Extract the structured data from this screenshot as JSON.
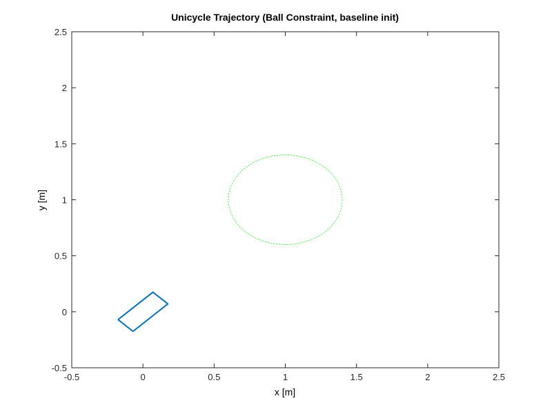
{
  "chart_data": {
    "type": "line",
    "title": "Unicycle Trajectory (Ball Constraint, baseline init)",
    "xlabel": "x [m]",
    "ylabel": "y [m]",
    "xlim": [
      -0.5,
      2.5
    ],
    "ylim": [
      -0.5,
      2.5
    ],
    "xticks": [
      -0.5,
      0,
      0.5,
      1,
      1.5,
      2,
      2.5
    ],
    "yticks": [
      -0.5,
      0,
      0.5,
      1,
      1.5,
      2,
      2.5
    ],
    "xtick_labels": [
      "-0.5",
      "0",
      "0.5",
      "1",
      "1.5",
      "2",
      "2.5"
    ],
    "ytick_labels": [
      "-0.5",
      "0",
      "0.5",
      "1",
      "1.5",
      "2",
      "2.5"
    ],
    "grid": false,
    "series": [
      {
        "style": "solid",
        "color": "#0072BD",
        "x": [
          -0.175,
          0.07,
          0.175,
          -0.07,
          -0.175
        ],
        "y": [
          -0.07,
          0.175,
          0.07,
          -0.175,
          -0.07
        ]
      }
    ],
    "obstacle": {
      "style": "dotted",
      "color": "#00FF00",
      "center": [
        1.0,
        1.0
      ],
      "radius_x": 0.4,
      "radius_y": 0.4
    }
  }
}
